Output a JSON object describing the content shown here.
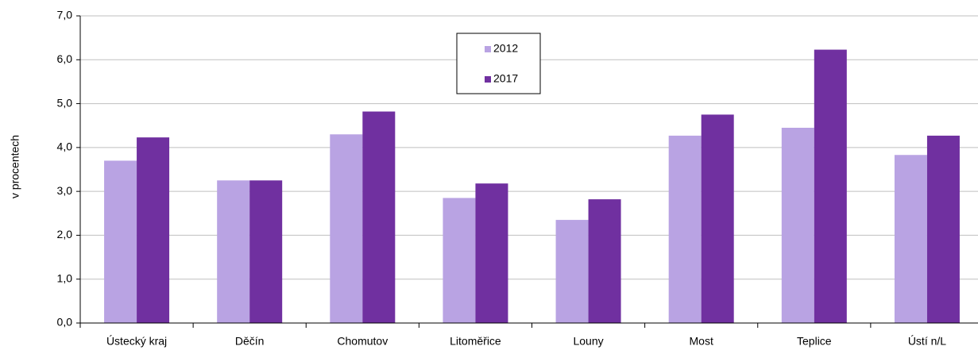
{
  "chart_data": {
    "type": "bar",
    "y_label": "v procentech",
    "categories": [
      "Ústecký kraj",
      "Děčín",
      "Chomutov",
      "Litoměřice",
      "Louny",
      "Most",
      "Teplice",
      "Ústí n/L"
    ],
    "series": [
      {
        "name": "2012",
        "color": "#b9a3e3",
        "values": [
          3.7,
          3.25,
          4.3,
          2.85,
          2.35,
          4.27,
          4.45,
          3.83
        ]
      },
      {
        "name": "2017",
        "color": "#7030a0",
        "values": [
          4.23,
          3.25,
          4.82,
          3.18,
          2.82,
          4.75,
          6.23,
          4.27
        ]
      }
    ],
    "ylim": [
      0,
      7
    ],
    "yticks": [
      {
        "value": 0,
        "label": "0,0"
      },
      {
        "value": 1,
        "label": "1,0"
      },
      {
        "value": 2,
        "label": "2,0"
      },
      {
        "value": 3,
        "label": "3,0"
      },
      {
        "value": 4,
        "label": "4,0"
      },
      {
        "value": 5,
        "label": "5,0"
      },
      {
        "value": 6,
        "label": "6,0"
      },
      {
        "value": 7,
        "label": "7,0"
      }
    ],
    "grid": true,
    "legend": "top-center"
  }
}
